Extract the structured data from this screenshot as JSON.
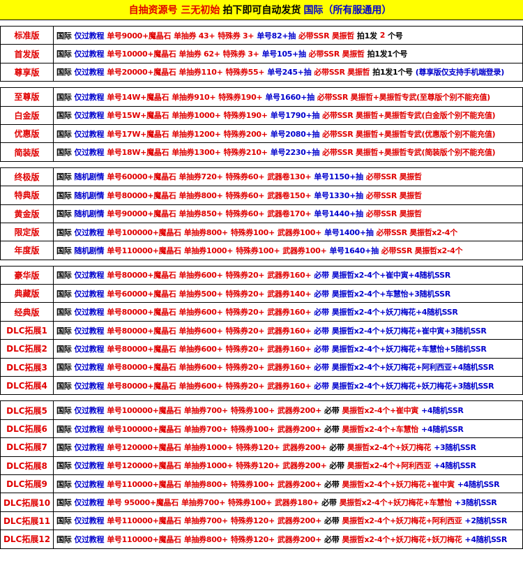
{
  "header": {
    "parts": [
      [
        "自抽资源号 三无初始",
        "r"
      ],
      [
        "拍下即可自动发货",
        "k"
      ],
      [
        "国际（所有服通用）",
        "b"
      ]
    ]
  },
  "groups": [
    {
      "rows": [
        {
          "label": "标准版",
          "parts": [
            [
              "国际",
              "k"
            ],
            [
              "仅过教程",
              "b"
            ],
            [
              "单号9000+魔晶石",
              "r"
            ],
            [
              "单抽券 43+",
              "r"
            ],
            [
              "特殊券 3+",
              "r"
            ],
            [
              "单号82+抽",
              "b"
            ],
            [
              "必带SSR 昊振哲",
              "r"
            ],
            [
              "拍1发",
              "k"
            ],
            [
              "2",
              "r"
            ],
            [
              "个号",
              "k"
            ]
          ]
        },
        {
          "label": "首发版",
          "parts": [
            [
              "国际",
              "k"
            ],
            [
              "仅过教程",
              "b"
            ],
            [
              "单号10000+魔晶石",
              "r"
            ],
            [
              "单抽券 62+",
              "r"
            ],
            [
              "特殊券 3+",
              "r"
            ],
            [
              "单号105+抽",
              "b"
            ],
            [
              "必带SSR 昊振哲",
              "r"
            ],
            [
              "拍1发1个号",
              "k"
            ]
          ]
        },
        {
          "label": "尊享版",
          "parts": [
            [
              "国际",
              "k"
            ],
            [
              "仅过教程",
              "b"
            ],
            [
              "单号20000+魔晶石",
              "r"
            ],
            [
              "单抽券110+",
              "r"
            ],
            [
              "特殊券55+",
              "r"
            ],
            [
              "单号245+抽",
              "b"
            ],
            [
              "必带SSR 昊振哲",
              "r"
            ],
            [
              "拍1发1个号",
              "k"
            ],
            [
              "(尊享版仅支持手机端登录)",
              "b"
            ]
          ]
        }
      ]
    },
    {
      "rows": [
        {
          "label": "至尊版",
          "parts": [
            [
              "国际",
              "k"
            ],
            [
              "仅过教程",
              "b"
            ],
            [
              "单号14W+魔晶石",
              "r"
            ],
            [
              "单抽券910+",
              "r"
            ],
            [
              "特殊券190+",
              "r"
            ],
            [
              "单号1660+抽",
              "b"
            ],
            [
              "必带SSR 昊振哲+昊振哲专武(至尊版个别不能充值)",
              "r"
            ]
          ]
        },
        {
          "label": "白金版",
          "parts": [
            [
              "国际",
              "k"
            ],
            [
              "仅过教程",
              "b"
            ],
            [
              "单号15W+魔晶石",
              "r"
            ],
            [
              "单抽券1000+",
              "r"
            ],
            [
              "特殊券190+",
              "r"
            ],
            [
              "单号1790+抽",
              "b"
            ],
            [
              "必带SSR 昊振哲+昊振哲专武(白金版个别不能充值)",
              "r"
            ]
          ]
        },
        {
          "label": "优惠版",
          "parts": [
            [
              "国际",
              "k"
            ],
            [
              "仅过教程",
              "b"
            ],
            [
              "单号17W+魔晶石",
              "r"
            ],
            [
              "单抽券1200+",
              "r"
            ],
            [
              "特殊券200+",
              "r"
            ],
            [
              "单号2080+抽",
              "b"
            ],
            [
              "必带SSR 昊振哲+昊振哲专武(优惠版个别不能充值)",
              "r"
            ]
          ]
        },
        {
          "label": "简装版",
          "parts": [
            [
              "国际",
              "k"
            ],
            [
              "仅过教程",
              "b"
            ],
            [
              "单号18W+魔晶石",
              "r"
            ],
            [
              "单抽券1300+",
              "r"
            ],
            [
              "特殊券210+",
              "r"
            ],
            [
              "单号2230+抽",
              "b"
            ],
            [
              "必带SSR 昊振哲+昊振哲专武(简装版个别不能充值)",
              "r"
            ]
          ]
        }
      ]
    },
    {
      "rows": [
        {
          "label": "终极版",
          "parts": [
            [
              "国际",
              "k"
            ],
            [
              "随机剧情",
              "b"
            ],
            [
              "单号60000+魔晶石",
              "r"
            ],
            [
              "单抽券720+",
              "r"
            ],
            [
              "特殊券60+",
              "r"
            ],
            [
              "武器卷130+",
              "r"
            ],
            [
              "单号1150+抽",
              "b"
            ],
            [
              "必带SSR 昊振哲",
              "r"
            ]
          ]
        },
        {
          "label": "特典版",
          "parts": [
            [
              "国际",
              "k"
            ],
            [
              "随机剧情",
              "b"
            ],
            [
              "单号80000+魔晶石",
              "r"
            ],
            [
              "单抽券800+",
              "r"
            ],
            [
              "特殊券60+",
              "r"
            ],
            [
              "武器卷150+",
              "r"
            ],
            [
              "单号1330+抽",
              "b"
            ],
            [
              "必带SSR 昊振哲",
              "r"
            ]
          ]
        },
        {
          "label": "黄金版",
          "parts": [
            [
              "国际",
              "k"
            ],
            [
              "随机剧情",
              "b"
            ],
            [
              "单号90000+魔晶石",
              "r"
            ],
            [
              "单抽券850+",
              "r"
            ],
            [
              "特殊券60+",
              "r"
            ],
            [
              "武器卷170+",
              "r"
            ],
            [
              "单号1440+抽",
              "b"
            ],
            [
              "必带SSR 昊振哲",
              "r"
            ]
          ]
        },
        {
          "label": "限定版",
          "parts": [
            [
              "国际",
              "k"
            ],
            [
              "仅过教程",
              "b"
            ],
            [
              "单号100000+魔晶石",
              "r"
            ],
            [
              "单抽券800+",
              "r"
            ],
            [
              "特殊券100+",
              "r"
            ],
            [
              "武器券100+",
              "r"
            ],
            [
              "单号1400+抽",
              "b"
            ],
            [
              "必带SSR 昊振哲x2-4个",
              "r"
            ]
          ]
        },
        {
          "label": "年度版",
          "parts": [
            [
              "国际",
              "k"
            ],
            [
              "随机剧情",
              "b"
            ],
            [
              "单号110000+魔晶石",
              "r"
            ],
            [
              "单抽券1000+",
              "r"
            ],
            [
              "特殊券100+",
              "r"
            ],
            [
              "武器券100+",
              "r"
            ],
            [
              "单号1640+抽",
              "b"
            ],
            [
              "必带SSR 昊振哲x2-4个",
              "r"
            ]
          ]
        }
      ]
    },
    {
      "rows": [
        {
          "label": "豪华版",
          "parts": [
            [
              "国际",
              "k"
            ],
            [
              "仅过教程",
              "b"
            ],
            [
              "单号80000+魔晶石",
              "r"
            ],
            [
              "单抽券600+",
              "r"
            ],
            [
              "特殊券20+",
              "r"
            ],
            [
              "武器券160+",
              "r"
            ],
            [
              "必带",
              "b"
            ],
            [
              "昊振哲x2-4个+崔中寅+4随机SSR",
              "b"
            ]
          ]
        },
        {
          "label": "典藏版",
          "parts": [
            [
              "国际",
              "k"
            ],
            [
              "仅过教程",
              "b"
            ],
            [
              "单号60000+魔晶石",
              "r"
            ],
            [
              "单抽券500+",
              "r"
            ],
            [
              "特殊券20+",
              "r"
            ],
            [
              "武器券140+",
              "r"
            ],
            [
              "必带",
              "b"
            ],
            [
              "昊振哲x2-4个+车慧怡+3随机SSR",
              "b"
            ]
          ]
        },
        {
          "label": "经典版",
          "parts": [
            [
              "国际",
              "k"
            ],
            [
              "仅过教程",
              "b"
            ],
            [
              "单号80000+魔晶石",
              "r"
            ],
            [
              "单抽券600+",
              "r"
            ],
            [
              "特殊券20+",
              "r"
            ],
            [
              "武器券160+",
              "r"
            ],
            [
              "必带",
              "b"
            ],
            [
              "昊振哲x2-4个+妖刀梅花+4随机SSR",
              "b"
            ]
          ]
        },
        {
          "label": "DLC拓展1",
          "parts": [
            [
              "国际",
              "k"
            ],
            [
              "仅过教程",
              "b"
            ],
            [
              "单号80000+魔晶石",
              "r"
            ],
            [
              "单抽券600+",
              "r"
            ],
            [
              "特殊券20+",
              "r"
            ],
            [
              "武器券160+",
              "r"
            ],
            [
              "必带",
              "b"
            ],
            [
              "昊振哲x2-4个+妖刀梅花+崔中寅+3随机SSR",
              "b"
            ]
          ]
        },
        {
          "label": "DLC拓展2",
          "parts": [
            [
              "国际",
              "k"
            ],
            [
              "仅过教程",
              "b"
            ],
            [
              "单号80000+魔晶石",
              "r"
            ],
            [
              "单抽券600+",
              "r"
            ],
            [
              "特殊券20+",
              "r"
            ],
            [
              "武器券160+",
              "r"
            ],
            [
              "必带",
              "b"
            ],
            [
              "昊振哲x2-4个+妖刀梅花+车慧怡+5随机SSR",
              "b"
            ]
          ]
        },
        {
          "label": "DLC拓展3",
          "parts": [
            [
              "国际",
              "k"
            ],
            [
              "仅过教程",
              "b"
            ],
            [
              "单号80000+魔晶石",
              "r"
            ],
            [
              "单抽券600+",
              "r"
            ],
            [
              "特殊券20+",
              "r"
            ],
            [
              "武器券160+",
              "r"
            ],
            [
              "必带",
              "b"
            ],
            [
              "昊振哲x2-4个+妖刀梅花+阿利西亚+4随机SSR",
              "b"
            ]
          ]
        },
        {
          "label": "DLC拓展4",
          "parts": [
            [
              "国际",
              "k"
            ],
            [
              "仅过教程",
              "b"
            ],
            [
              "单号80000+魔晶石",
              "r"
            ],
            [
              "单抽券600+",
              "r"
            ],
            [
              "特殊券20+",
              "r"
            ],
            [
              "武器券160+",
              "r"
            ],
            [
              "必带",
              "b"
            ],
            [
              "昊振哲x2-4个+妖刀梅花+妖刀梅花+3随机SSR",
              "b"
            ]
          ]
        }
      ]
    },
    {
      "rows": [
        {
          "label": "DLC拓展5",
          "parts": [
            [
              "国际",
              "k"
            ],
            [
              "仅过教程",
              "b"
            ],
            [
              "单号100000+魔晶石",
              "r"
            ],
            [
              "单抽券700+",
              "r"
            ],
            [
              "特殊券100+",
              "r"
            ],
            [
              "武器券200+",
              "r"
            ],
            [
              "必带",
              "k"
            ],
            [
              "昊振哲x2-4个+崔中寅",
              "r"
            ],
            [
              "+4随机SSR",
              "b"
            ]
          ]
        },
        {
          "label": "DLC拓展6",
          "parts": [
            [
              "国际",
              "k"
            ],
            [
              "仅过教程",
              "b"
            ],
            [
              "单号100000+魔晶石",
              "r"
            ],
            [
              "单抽券700+",
              "r"
            ],
            [
              "特殊券100+",
              "r"
            ],
            [
              "武器券200+",
              "r"
            ],
            [
              "必带",
              "k"
            ],
            [
              "昊振哲x2-4个+车慧怡",
              "r"
            ],
            [
              "+4随机SSR",
              "b"
            ]
          ]
        },
        {
          "label": "DLC拓展7",
          "parts": [
            [
              "国际",
              "k"
            ],
            [
              "仅过教程",
              "b"
            ],
            [
              "单号120000+魔晶石",
              "r"
            ],
            [
              "单抽券1000+",
              "r"
            ],
            [
              "特殊券120+",
              "r"
            ],
            [
              "武器券200+",
              "r"
            ],
            [
              "必带",
              "k"
            ],
            [
              "昊振哲x2-4个+妖刀梅花",
              "r"
            ],
            [
              "+3随机SSR",
              "b"
            ]
          ]
        },
        {
          "label": "DLC拓展8",
          "parts": [
            [
              "国际",
              "k"
            ],
            [
              "仅过教程",
              "b"
            ],
            [
              "单号120000+魔晶石",
              "r"
            ],
            [
              "单抽券1000+",
              "r"
            ],
            [
              "特殊券120+",
              "r"
            ],
            [
              "武器券200+",
              "r"
            ],
            [
              "必带",
              "k"
            ],
            [
              "昊振哲x2-4个+阿利西亚",
              "r"
            ],
            [
              "+4随机SSR",
              "b"
            ]
          ]
        },
        {
          "label": "DLC拓展9",
          "parts": [
            [
              "国际",
              "k"
            ],
            [
              "仅过教程",
              "b"
            ],
            [
              "单号110000+魔晶石",
              "r"
            ],
            [
              "单抽券800+",
              "r"
            ],
            [
              "特殊券100+",
              "r"
            ],
            [
              "武器券200+",
              "r"
            ],
            [
              "必带",
              "k"
            ],
            [
              "昊振哲x2-4个+妖刀梅花+崔中寅",
              "r"
            ],
            [
              "+4随机SSR",
              "b"
            ]
          ]
        },
        {
          "label": "DLC拓展10",
          "parts": [
            [
              "国际",
              "k"
            ],
            [
              "仅过教程",
              "b"
            ],
            [
              "单号 95000+魔晶石",
              "r"
            ],
            [
              "单抽券700+",
              "r"
            ],
            [
              "特殊券100+",
              "r"
            ],
            [
              "武器券180+",
              "r"
            ],
            [
              "必带",
              "k"
            ],
            [
              "昊振哲x2-4个+妖刀梅花+车慧怡",
              "r"
            ],
            [
              "+3随机SSR",
              "b"
            ]
          ]
        },
        {
          "label": "DLC拓展11",
          "parts": [
            [
              "国际",
              "k"
            ],
            [
              "仅过教程",
              "b"
            ],
            [
              "单号110000+魔晶石",
              "r"
            ],
            [
              "单抽券700+",
              "r"
            ],
            [
              "特殊券120+",
              "r"
            ],
            [
              "武器券200+",
              "r"
            ],
            [
              "必带",
              "k"
            ],
            [
              "昊振哲x2-4个+妖刀梅花+阿利西亚",
              "r"
            ],
            [
              "+2随机SSR",
              "b"
            ]
          ]
        },
        {
          "label": "DLC拓展12",
          "parts": [
            [
              "国际",
              "k"
            ],
            [
              "仅过教程",
              "b"
            ],
            [
              "单号110000+魔晶石",
              "r"
            ],
            [
              "单抽券800+",
              "r"
            ],
            [
              "特殊券120+",
              "r"
            ],
            [
              "武器券200+",
              "r"
            ],
            [
              "必带",
              "k"
            ],
            [
              "昊振哲x2-4个+妖刀梅花+妖刀梅花",
              "r"
            ],
            [
              "+4随机SSR",
              "b"
            ]
          ]
        }
      ]
    }
  ]
}
